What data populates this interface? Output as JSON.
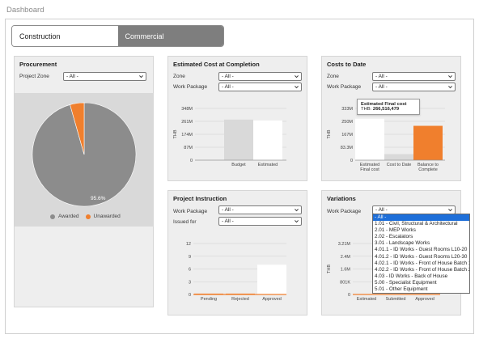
{
  "page": {
    "title": "Dashboard"
  },
  "tabs": [
    {
      "label": "Construction"
    },
    {
      "label": "Commercial"
    }
  ],
  "procurement": {
    "title": "Procurement",
    "zone_label": "Project Zone",
    "zone_value": "- All -",
    "pie_label": "95.6%",
    "legend": [
      {
        "label": "Awarded",
        "color": "#8c8c8c"
      },
      {
        "label": "Unawarded",
        "color": "#f07f2d"
      }
    ]
  },
  "estimated_cost": {
    "title": "Estimated Cost at Completion",
    "zone_label": "Zone",
    "zone_value": "- All -",
    "wp_label": "Work Package",
    "wp_value": "- All -"
  },
  "costs_to_date": {
    "title": "Costs to Date",
    "zone_label": "Zone",
    "zone_value": "- All -",
    "wp_label": "Work Package",
    "wp_value": "- All -",
    "tooltip_title": "Estimated Final cost",
    "tooltip_currency": "THB:",
    "tooltip_value": "266,516,479"
  },
  "project_instruction": {
    "title": "Project Instruction",
    "wp_label": "Work Package",
    "wp_value": "- All -",
    "issued_label": "Issued for",
    "issued_value": "- All -"
  },
  "variations": {
    "title": "Variations",
    "wp_label": "Work Package",
    "wp_value": "- All -",
    "options": [
      "- All -",
      "1.01 - Civil, Structural & Architectural",
      "2.01 - MEP Works",
      "2.02 - Escalators",
      "3.01 - Landscape Works",
      "4.01.1 - ID Works - Guest Rooms L10-20",
      "4.01.2 - ID Works - Guest Rooms L20-30",
      "4.02.1 - ID Works - Front of House Batch 1",
      "4.02.2 - ID Works - Front of House Batch 2",
      "4.03 - ID Works - Back of House",
      "5.00 - Specialist Equipment",
      "5.01 - Other Equipment"
    ]
  },
  "chart_data": [
    {
      "type": "pie",
      "title": "Procurement",
      "categories": [
        "Awarded",
        "Unawarded"
      ],
      "values": [
        95.6,
        4.4
      ],
      "colors": [
        "#8c8c8c",
        "#f07f2d"
      ],
      "data_labels": [
        "95.6%"
      ],
      "legend": "bottom"
    },
    {
      "type": "bar",
      "title": "Estimated Cost at Completion",
      "categories": [
        "Budget",
        "Estimated"
      ],
      "values": [
        273,
        266.5
      ],
      "colors": [
        "#d9d9d9",
        "#ffffff"
      ],
      "ylabel": "THB",
      "yticks": [
        "0",
        "87M",
        "174M",
        "261M",
        "348M"
      ],
      "ylim": [
        0,
        348
      ]
    },
    {
      "type": "bar",
      "title": "Costs to Date",
      "categories": [
        "Estimated Final cost",
        "Cost to Date",
        "Balance to Complete"
      ],
      "stacked_base": [
        0,
        0,
        0
      ],
      "values": [
        266.5,
        39,
        221
      ],
      "colors": [
        "#ffffff",
        "#d9d9d9",
        "#f07f2d"
      ],
      "ylabel": "THB",
      "yticks": [
        "0",
        "83.3M",
        "167M",
        "250M",
        "333M"
      ],
      "ylim": [
        0,
        333
      ]
    },
    {
      "type": "bar",
      "title": "Project Instruction",
      "categories": [
        "Pending",
        "Rejected",
        "Approved"
      ],
      "values": [
        0.2,
        0.2,
        7
      ],
      "colors": [
        "#f07f2d",
        "#f07f2d",
        "#ffffff"
      ],
      "yticks": [
        "0",
        "3",
        "6",
        "9",
        "12"
      ],
      "ylim": [
        0,
        12
      ]
    },
    {
      "type": "bar",
      "title": "Variations",
      "categories": [
        "Estimated",
        "Submitted",
        "Approved"
      ],
      "values": [
        0,
        0,
        0
      ],
      "ylabel": "THB",
      "yticks": [
        "0",
        "801K",
        "1.6M",
        "2.4M",
        "3.21M"
      ],
      "ylim": [
        0,
        3.21
      ]
    }
  ]
}
